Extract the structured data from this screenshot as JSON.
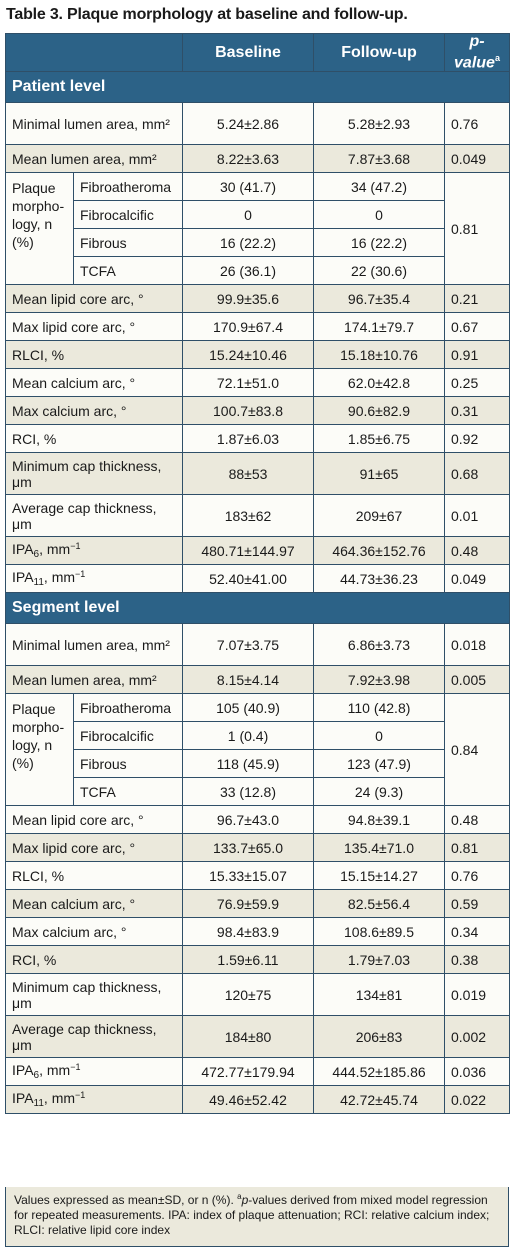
{
  "title": "Table 3. Plaque morphology at baseline and follow-up.",
  "columns": {
    "label": "",
    "baseline": "Baseline",
    "followup": "Follow-up",
    "pvalue_prefix": "p",
    "pvalue_rest": "-value",
    "pvalue_sup": "a"
  },
  "patient": {
    "heading": "Patient level",
    "min_lumen": {
      "label": "Minimal lumen area, mm²",
      "b": "5.24±2.86",
      "f": "5.28±2.93",
      "p": "0.76"
    },
    "mean_lumen": {
      "label": "Mean lumen area, mm²",
      "b": "8.22±3.63",
      "f": "7.87±3.68",
      "p": "0.049"
    },
    "morph": {
      "label": "Plaque morpho-logy, n (%)",
      "p": "0.81",
      "rows": [
        {
          "label": "Fibroatheroma",
          "b": "30 (41.7)",
          "f": "34 (47.2)"
        },
        {
          "label": "Fibrocalcific",
          "b": "0",
          "f": "0"
        },
        {
          "label": "Fibrous",
          "b": "16 (22.2)",
          "f": "16 (22.2)"
        },
        {
          "label": "TCFA",
          "b": "26 (36.1)",
          "f": "22 (30.6)"
        }
      ]
    },
    "rows_a": [
      {
        "label": "Mean lipid core arc, °",
        "b": "99.9±35.6",
        "f": "96.7±35.4",
        "p": "0.21"
      },
      {
        "label": "Max lipid core arc, °",
        "b": "170.9±67.4",
        "f": "174.1±79.7",
        "p": "0.67"
      },
      {
        "label": "RLCI, %",
        "b": "15.24±10.46",
        "f": "15.18±10.76",
        "p": "0.91"
      },
      {
        "label": "Mean calcium arc, °",
        "b": "72.1±51.0",
        "f": "62.0±42.8",
        "p": "0.25"
      },
      {
        "label": "Max calcium arc, °",
        "b": "100.7±83.8",
        "f": "90.6±82.9",
        "p": "0.31"
      },
      {
        "label": "RCI, %",
        "b": "1.87±6.03",
        "f": "1.85±6.75",
        "p": "0.92"
      }
    ],
    "min_cap": {
      "label": "Minimum cap thickness, μm",
      "b": "88±53",
      "f": "91±65",
      "p": "0.68"
    },
    "avg_cap": {
      "label": "Average cap thickness, μm",
      "b": "183±62",
      "f": "209±67",
      "p": "0.01"
    },
    "ipa6": {
      "label_main": "IPA",
      "label_sub": "6",
      "label_unit": ", mm",
      "label_sup": "−1",
      "b": "480.71±144.97",
      "f": "464.36±152.76",
      "p": "0.48"
    },
    "ipa11": {
      "label_main": "IPA",
      "label_sub": "11",
      "label_unit": ", mm",
      "label_sup": "−1",
      "b": "52.40±41.00",
      "f": "44.73±36.23",
      "p": "0.049"
    }
  },
  "segment": {
    "heading": "Segment level",
    "min_lumen": {
      "label": "Minimal lumen area, mm²",
      "b": "7.07±3.75",
      "f": "6.86±3.73",
      "p": "0.018"
    },
    "mean_lumen": {
      "label": "Mean lumen area, mm²",
      "b": "8.15±4.14",
      "f": "7.92±3.98",
      "p": "0.005"
    },
    "morph": {
      "label": "Plaque morpho-logy, n (%)",
      "p": "0.84",
      "rows": [
        {
          "label": "Fibroatheroma",
          "b": "105 (40.9)",
          "f": "110 (42.8)"
        },
        {
          "label": "Fibrocalcific",
          "b": "1 (0.4)",
          "f": "0"
        },
        {
          "label": "Fibrous",
          "b": "118 (45.9)",
          "f": "123 (47.9)"
        },
        {
          "label": "TCFA",
          "b": "33 (12.8)",
          "f": "24 (9.3)"
        }
      ]
    },
    "rows_a": [
      {
        "label": "Mean lipid core arc, °",
        "b": "96.7±43.0",
        "f": "94.8±39.1",
        "p": "0.48"
      },
      {
        "label": "Max lipid core arc, °",
        "b": "133.7±65.0",
        "f": "135.4±71.0",
        "p": "0.81"
      },
      {
        "label": "RLCI, %",
        "b": "15.33±15.07",
        "f": "15.15±14.27",
        "p": "0.76"
      },
      {
        "label": "Mean calcium arc, °",
        "b": "76.9±59.9",
        "f": "82.5±56.4",
        "p": "0.59"
      },
      {
        "label": "Max calcium arc, °",
        "b": "98.4±83.9",
        "f": "108.6±89.5",
        "p": "0.34"
      },
      {
        "label": "RCI, %",
        "b": "1.59±6.11",
        "f": "1.79±7.03",
        "p": "0.38"
      }
    ],
    "min_cap": {
      "label": "Minimum cap thickness, μm",
      "b": "120±75",
      "f": "134±81",
      "p": "0.019"
    },
    "avg_cap": {
      "label": "Average cap thickness, μm",
      "b": "184±80",
      "f": "206±83",
      "p": "0.002"
    },
    "ipa6": {
      "label_main": "IPA",
      "label_sub": "6",
      "label_unit": ", mm",
      "label_sup": "−1",
      "b": "472.77±179.94",
      "f": "444.52±185.86",
      "p": "0.036"
    },
    "ipa11": {
      "label_main": "IPA",
      "label_sub": "11",
      "label_unit": ", mm",
      "label_sup": "−1",
      "b": "49.46±52.42",
      "f": "42.72±45.74",
      "p": "0.022"
    }
  },
  "footnote": {
    "part1": "Values expressed as mean±SD, or n (%). ",
    "sup": "a",
    "italic": "p",
    "part2": "-values derived from mixed model regression for repeated measurements. IPA: index of plaque attenuation; RCI: relative calcium index; RLCI: relative lipid core index"
  },
  "colors": {
    "header_bg": "#2c6287",
    "row_tan": "#ebe9dc",
    "row_white": "#fcfcf8",
    "border": "#2f4f68"
  }
}
